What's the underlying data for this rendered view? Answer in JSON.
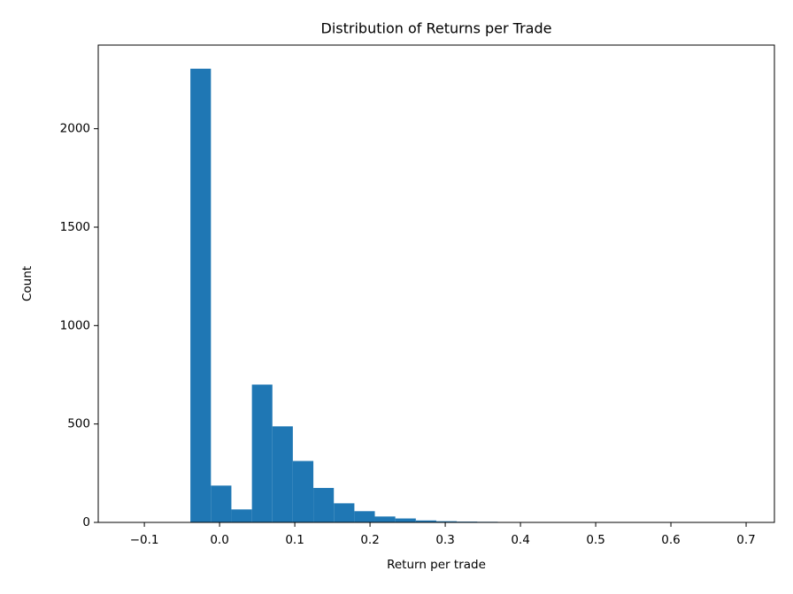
{
  "chart_data": {
    "type": "histogram",
    "title": "Distribution of Returns per Trade",
    "x_label": "Return per trade",
    "y_label": "Count",
    "color": "#1f77b4",
    "bins": [
      -0.1205,
      -0.0933,
      -0.066,
      -0.0388,
      -0.0115,
      0.0157,
      0.043,
      0.0702,
      0.0974,
      0.1247,
      0.1519,
      0.1792,
      0.2064,
      0.2336,
      0.2609,
      0.2881,
      0.3154,
      0.3426,
      0.3698,
      0.3971,
      0.4243,
      0.4516,
      0.4788,
      0.506,
      0.5333,
      0.5605,
      0.5878,
      0.615,
      0.6422,
      0.6695,
      0.6967
    ],
    "values": [
      1,
      0,
      0,
      2305,
      187,
      66,
      700,
      488,
      312,
      175,
      97,
      57,
      30,
      20,
      10,
      6,
      4,
      3,
      2,
      2,
      1,
      1,
      1,
      0,
      0,
      1,
      0,
      0,
      0,
      1
    ],
    "xlim": [
      -0.1613,
      0.7376
    ],
    "ylim": [
      0,
      2425
    ],
    "xticks": [
      {
        "value": -0.1,
        "label": "−0.1"
      },
      {
        "value": 0,
        "label": "0.0"
      },
      0.1,
      0.2,
      0.3,
      0.4,
      0.5,
      0.6,
      0.7
    ],
    "yticks": [
      0,
      500,
      1000,
      1500,
      2000
    ]
  }
}
